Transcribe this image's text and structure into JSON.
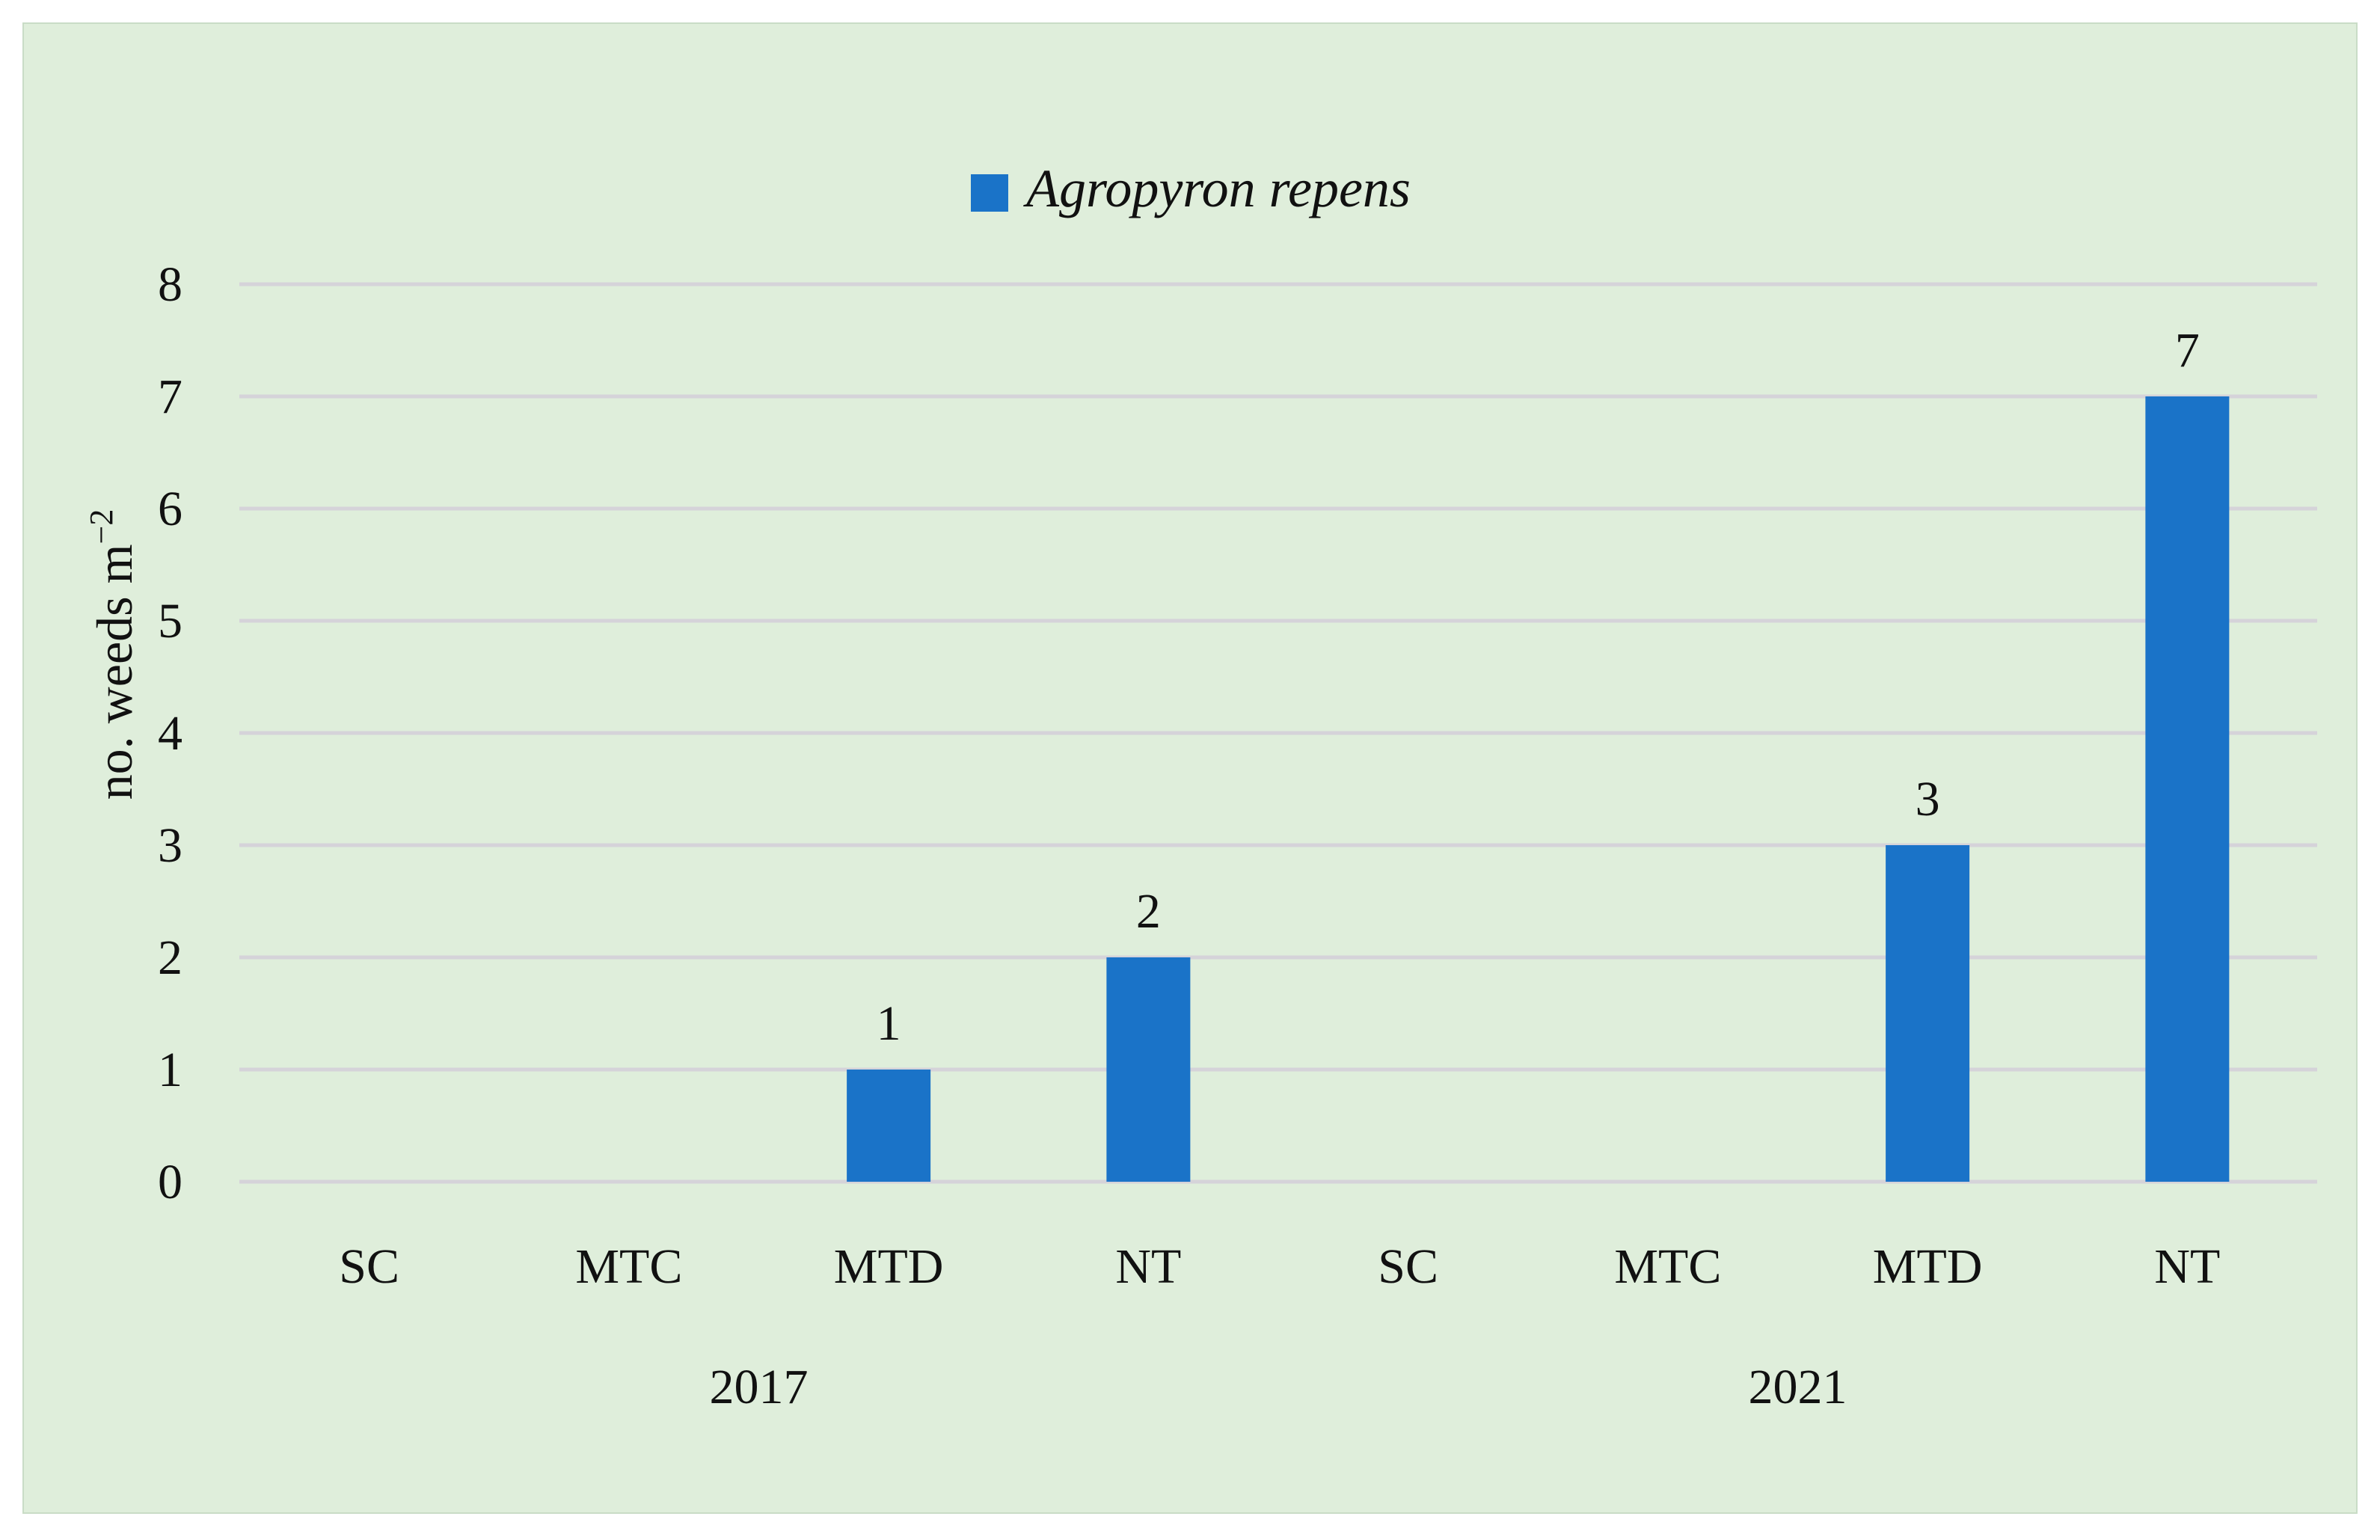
{
  "chart_data": {
    "type": "bar",
    "categories": [
      "SC",
      "MTC",
      "MTD",
      "NT",
      "SC",
      "MTC",
      "MTD",
      "NT"
    ],
    "groups": [
      {
        "label": "2017",
        "start": 0,
        "end": 3
      },
      {
        "label": "2021",
        "start": 4,
        "end": 7
      }
    ],
    "series": [
      {
        "name": "Agropyron repens",
        "values": [
          0,
          0,
          1,
          2,
          0,
          0,
          3,
          7
        ],
        "color": "#1a73c8"
      }
    ],
    "data_labels": [
      "",
      "",
      "1",
      "2",
      "",
      "",
      "3",
      "7"
    ],
    "ylabel": "no. weeds m",
    "ylabel_superscript": "−2",
    "ylim": [
      0,
      8
    ],
    "yticks": [
      0,
      1,
      2,
      3,
      4,
      5,
      6,
      7,
      8
    ],
    "grid": true,
    "legend_position": "top-center",
    "background_color": "#dfeedb",
    "grid_color": "#d5d3d9"
  }
}
